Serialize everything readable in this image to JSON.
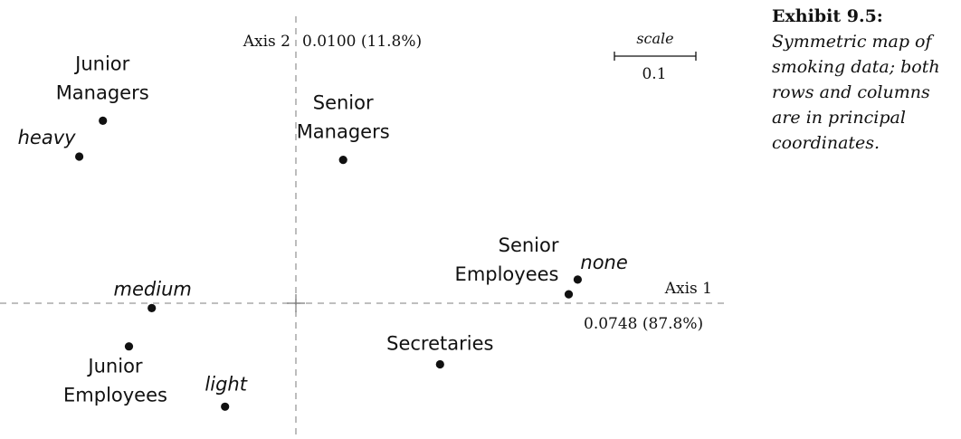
{
  "caption": {
    "title": "Exhibit 9.5:",
    "lines": [
      "Symmetric map of",
      "smoking data; both",
      "rows and columns",
      "are in principal",
      "coordinates."
    ]
  },
  "scale_bar": {
    "label": "scale",
    "value_label": "0.1",
    "length": 0.1
  },
  "chart_data": {
    "type": "scatter",
    "x_axis": {
      "name": "Axis 1",
      "inertia_label": "0.0748 (87.8%)",
      "range": [
        -0.3,
        0.55
      ]
    },
    "y_axis": {
      "name": "Axis 2",
      "inertia_label": "0.0100 (11.8%)",
      "range": [
        -0.17,
        0.33
      ]
    },
    "grid": false,
    "origin_cross": true,
    "points": [
      {
        "label": "Junior Managers",
        "lines": [
          "Junior",
          "Managers"
        ],
        "x": -0.237,
        "y": 0.224,
        "group": "row",
        "style": "sans",
        "anchor": "middle"
      },
      {
        "label": "heavy",
        "lines": [
          "heavy"
        ],
        "x": -0.266,
        "y": 0.18,
        "group": "column",
        "style": "italic",
        "anchor": "end"
      },
      {
        "label": "Senior Managers",
        "lines": [
          "Senior",
          "Managers"
        ],
        "x": 0.058,
        "y": 0.176,
        "group": "row",
        "style": "sans",
        "anchor": "middle"
      },
      {
        "label": "Senior Employees",
        "lines": [
          "Senior",
          "Employees"
        ],
        "x": 0.335,
        "y": 0.011,
        "group": "row",
        "style": "sans",
        "anchor": "end"
      },
      {
        "label": "none",
        "lines": [
          "none"
        ],
        "x": 0.346,
        "y": 0.029,
        "group": "column",
        "style": "italic",
        "anchor": "start"
      },
      {
        "label": "medium",
        "lines": [
          "medium"
        ],
        "x": -0.177,
        "y": -0.006,
        "group": "column",
        "style": "italic",
        "anchor": "middle"
      },
      {
        "label": "Junior Employees",
        "lines": [
          "Junior",
          "Employees"
        ],
        "x": -0.205,
        "y": -0.053,
        "group": "row",
        "style": "sans",
        "anchor": "middle"
      },
      {
        "label": "Secretaries",
        "lines": [
          "Secretaries"
        ],
        "x": 0.177,
        "y": -0.075,
        "group": "row",
        "style": "sans",
        "anchor": "middle"
      },
      {
        "label": "light",
        "lines": [
          "light"
        ],
        "x": -0.087,
        "y": -0.127,
        "group": "column",
        "style": "italic",
        "anchor": "middle"
      }
    ]
  }
}
